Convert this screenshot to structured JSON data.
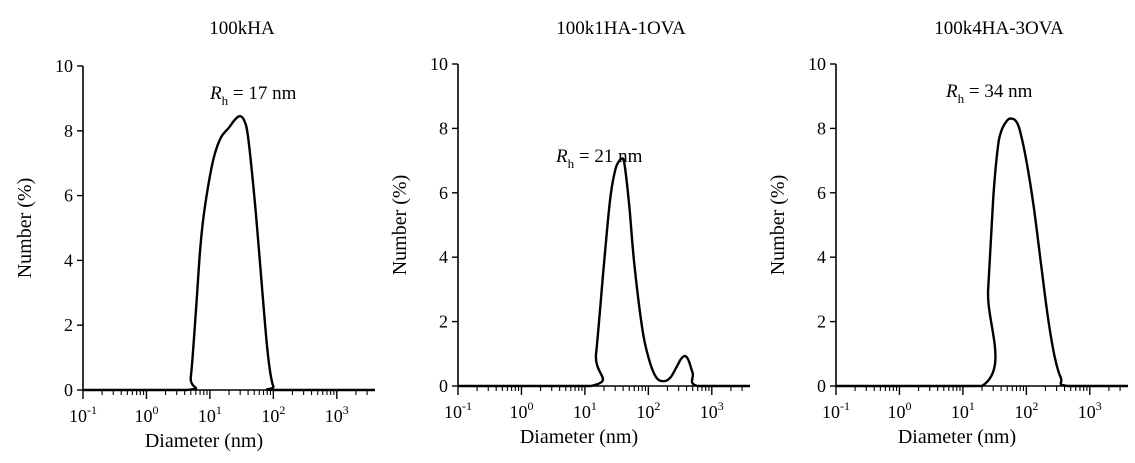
{
  "chart_data": [
    {
      "type": "line",
      "title": "100kHA",
      "xlabel": "Diameter (nm)",
      "ylabel": "Number (%)",
      "xscale": "log",
      "xlim": [
        0.1,
        4000
      ],
      "ylim": [
        0,
        10
      ],
      "xticks": [
        "10",
        "10",
        "10",
        "10",
        "10"
      ],
      "xtick_exponents": [
        "-1",
        "0",
        "1",
        "2",
        "3"
      ],
      "yticks": [
        "0",
        "2",
        "4",
        "6",
        "8",
        "10"
      ],
      "annotation": {
        "symbol": "R",
        "subscript": "h",
        "text": " = 17 nm"
      },
      "series": [
        {
          "x": [
            0.1,
            4.3,
            5,
            6,
            7,
            8,
            10,
            12,
            15,
            20,
            25,
            30,
            35,
            40,
            50,
            60,
            70,
            80,
            90,
            100,
            107,
            4000
          ],
          "y": [
            0,
            0,
            0.4,
            2.4,
            4.3,
            5.4,
            6.6,
            7.3,
            7.8,
            8.1,
            8.35,
            8.45,
            8.3,
            7.8,
            6.0,
            4.2,
            2.6,
            1.3,
            0.5,
            0.1,
            0,
            0
          ]
        }
      ]
    },
    {
      "type": "line",
      "title": "100k1HA-1OVA",
      "xlabel": "Diameter (nm)",
      "ylabel": "Number (%)",
      "xscale": "log",
      "xlim": [
        0.1,
        4000
      ],
      "ylim": [
        0,
        10
      ],
      "xticks": [
        "10",
        "10",
        "10",
        "10",
        "10"
      ],
      "xtick_exponents": [
        "-1",
        "0",
        "1",
        "2",
        "3"
      ],
      "yticks": [
        "0",
        "2",
        "4",
        "6",
        "8",
        "10"
      ],
      "annotation": {
        "symbol": "R",
        "subscript": "h",
        "text": " = 21 nm"
      },
      "series": [
        {
          "x": [
            0.1,
            12.5,
            15,
            20,
            25,
            30,
            35,
            38,
            42,
            50,
            60,
            80,
            100,
            130,
            170,
            220,
            280,
            330,
            380,
            430,
            500,
            600,
            4000
          ],
          "y": [
            0,
            0,
            1.0,
            3.8,
            5.8,
            6.7,
            7.0,
            7.05,
            6.9,
            5.6,
            3.8,
            1.8,
            0.9,
            0.3,
            0.15,
            0.25,
            0.6,
            0.85,
            0.93,
            0.8,
            0.4,
            0,
            0
          ]
        }
      ]
    },
    {
      "type": "line",
      "title": "100k4HA-3OVA",
      "xlabel": "Diameter (nm)",
      "ylabel": "Number (%)",
      "xscale": "log",
      "xlim": [
        0.1,
        4000
      ],
      "ylim": [
        0,
        10
      ],
      "xticks": [
        "10",
        "10",
        "10",
        "10",
        "10"
      ],
      "xtick_exponents": [
        "-1",
        "0",
        "1",
        "2",
        "3"
      ],
      "yticks": [
        "0",
        "2",
        "4",
        "6",
        "8",
        "10"
      ],
      "annotation": {
        "symbol": "R",
        "subscript": "h",
        "text": " = 34 nm"
      },
      "series": [
        {
          "x": [
            0.1,
            20,
            25,
            30,
            35,
            40,
            50,
            60,
            70,
            80,
            100,
            130,
            170,
            220,
            280,
            350,
            450,
            4000
          ],
          "y": [
            0,
            0,
            3.0,
            5.8,
            7.3,
            7.9,
            8.25,
            8.3,
            8.2,
            7.9,
            7.0,
            5.6,
            3.8,
            2.1,
            0.9,
            0.25,
            0,
            0
          ]
        }
      ]
    }
  ]
}
